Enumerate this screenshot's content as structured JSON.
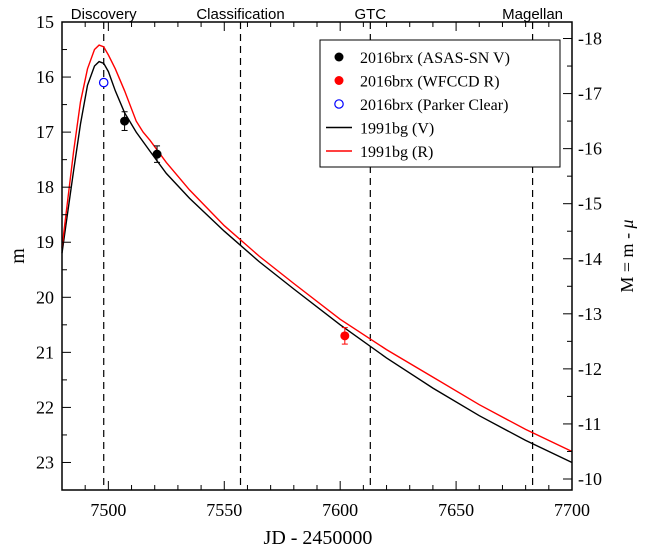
{
  "chart_data": {
    "type": "line",
    "xlabel": "JD - 2450000",
    "ylabel_left": "m",
    "ylabel_right_prefix": "M = m - ",
    "ylabel_right_symbol": "μ",
    "xlim": [
      7480,
      7700
    ],
    "ylim_left": [
      23.5,
      15.0
    ],
    "ylim_right": [
      -9.8,
      -18.3
    ],
    "distance_modulus": 33.3,
    "xticks": [
      7500,
      7550,
      7600,
      7650,
      7700
    ],
    "yticks_left": [
      15,
      16,
      17,
      18,
      19,
      20,
      21,
      22,
      23
    ],
    "yticks_right": [
      -18,
      -17,
      -16,
      -15,
      -14,
      -13,
      -12,
      -11,
      -10
    ],
    "events": [
      {
        "label": "Discovery",
        "x": 7498
      },
      {
        "label": "Classification",
        "x": 7557
      },
      {
        "label": "GTC",
        "x": 7613
      },
      {
        "label": "Magellan",
        "x": 7683
      }
    ],
    "series": [
      {
        "name": "2016brx (ASAS-SN V)",
        "kind": "points",
        "marker": "filled-circle",
        "color": "#000000",
        "points": [
          {
            "x": 7507,
            "y": 16.8,
            "err": 0.17
          },
          {
            "x": 7521,
            "y": 17.4,
            "err": 0.15
          }
        ]
      },
      {
        "name": "2016brx (WFCCD R)",
        "kind": "points",
        "marker": "filled-circle",
        "color": "#ff0000",
        "points": [
          {
            "x": 7602,
            "y": 20.7,
            "err": 0.15
          }
        ]
      },
      {
        "name": "2016brx (Parker Clear)",
        "kind": "points",
        "marker": "open-circle",
        "color": "#0000ff",
        "points": [
          {
            "x": 7498,
            "y": 16.1,
            "err": 0
          }
        ]
      },
      {
        "name": "1991bg (V)",
        "kind": "line",
        "color": "#000000",
        "x": [
          7480,
          7482,
          7485,
          7488,
          7491,
          7494,
          7496,
          7498,
          7500,
          7503,
          7507,
          7512,
          7518,
          7525,
          7535,
          7550,
          7565,
          7580,
          7600,
          7620,
          7640,
          7660,
          7680,
          7700
        ],
        "y": [
          19.2,
          18.6,
          17.7,
          16.85,
          16.15,
          15.8,
          15.72,
          15.75,
          15.9,
          16.25,
          16.65,
          17.0,
          17.35,
          17.75,
          18.2,
          18.8,
          19.35,
          19.85,
          20.5,
          21.1,
          21.65,
          22.15,
          22.6,
          23.0
        ]
      },
      {
        "name": "1991bg (R)",
        "kind": "line",
        "color": "#ff0000",
        "x": [
          7480,
          7482,
          7485,
          7488,
          7491,
          7494,
          7496,
          7498,
          7500,
          7503,
          7507,
          7512,
          7515,
          7518,
          7525,
          7535,
          7550,
          7565,
          7580,
          7600,
          7620,
          7640,
          7660,
          7680,
          7700
        ],
        "y": [
          19.1,
          18.4,
          17.35,
          16.45,
          15.85,
          15.5,
          15.42,
          15.45,
          15.6,
          15.85,
          16.25,
          16.8,
          17.0,
          17.15,
          17.55,
          18.05,
          18.7,
          19.25,
          19.75,
          20.4,
          20.95,
          21.45,
          21.95,
          22.4,
          22.8
        ]
      }
    ],
    "legend": {
      "position": "top-right",
      "entries": [
        "2016brx (ASAS-SN V)",
        "2016brx (WFCCD R)",
        "2016brx (Parker Clear)",
        "1991bg (V)",
        "1991bg (R)"
      ]
    },
    "grid": false
  }
}
